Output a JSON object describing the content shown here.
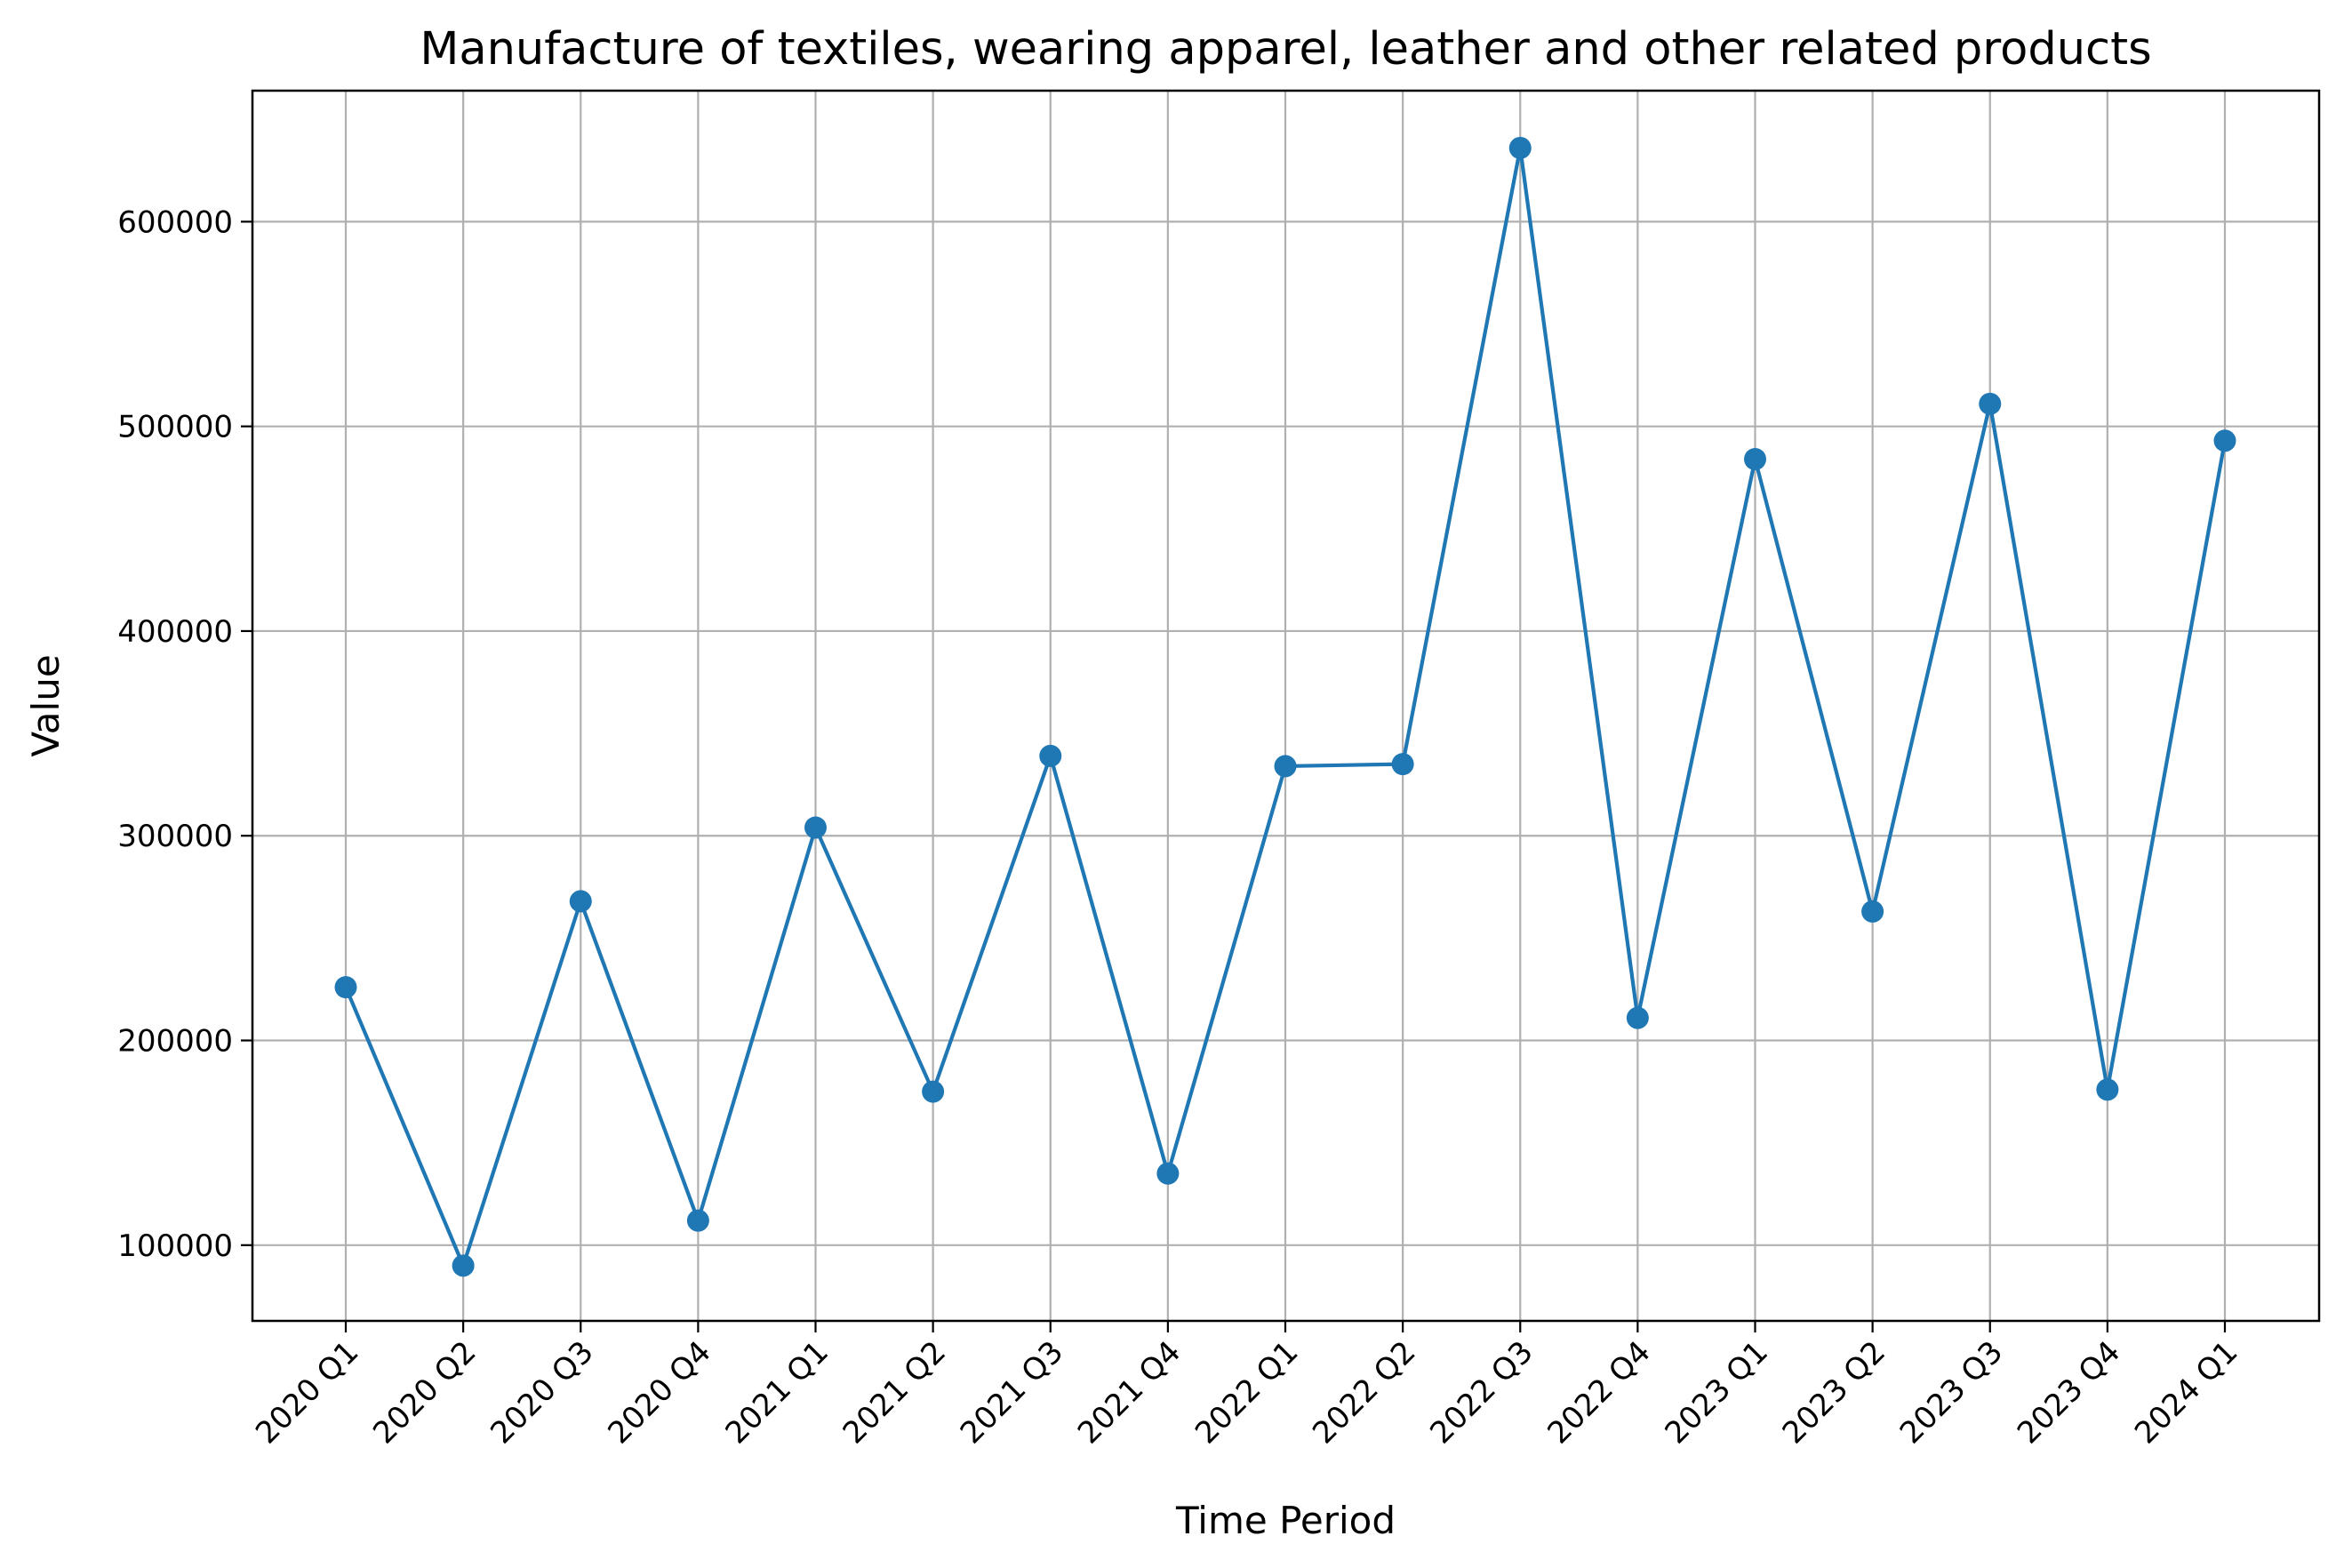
{
  "chart_data": {
    "type": "line",
    "title": "Manufacture of textiles, wearing apparel, leather and other related products",
    "xlabel": "Time Period",
    "ylabel": "Value",
    "categories": [
      "2020 Q1",
      "2020 Q2",
      "2020 Q3",
      "2020 Q4",
      "2021 Q1",
      "2021 Q2",
      "2021 Q3",
      "2021 Q4",
      "2022 Q1",
      "2022 Q2",
      "2022 Q3",
      "2022 Q4",
      "2023 Q1",
      "2023 Q2",
      "2023 Q3",
      "2023 Q4",
      "2024 Q1"
    ],
    "series": [
      {
        "values": [
          226000,
          90000,
          268000,
          112000,
          304000,
          175000,
          339000,
          135000,
          334000,
          335000,
          636000,
          211000,
          484000,
          263000,
          511000,
          176000,
          493000
        ],
        "color": "#1f77b4",
        "marker": "circle"
      }
    ],
    "yticks": [
      100000,
      200000,
      300000,
      400000,
      500000,
      600000
    ],
    "ytick_labels": [
      "100000",
      "200000",
      "300000",
      "400000",
      "500000",
      "600000"
    ],
    "ylim": [
      63000,
      664000
    ],
    "grid": true,
    "legend": false
  }
}
